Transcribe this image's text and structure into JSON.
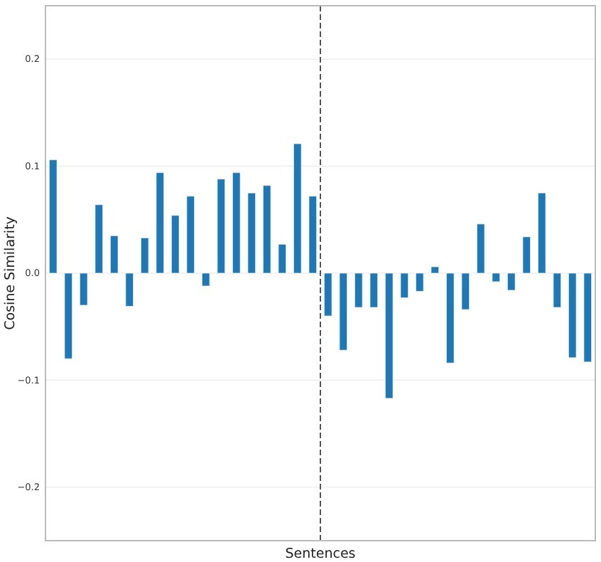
{
  "chart_data": {
    "type": "bar",
    "xlabel": "Sentences",
    "ylabel": "Cosine Similarity",
    "categories": [
      null,
      null,
      null,
      null,
      null,
      null,
      null,
      null,
      null,
      null,
      null,
      null,
      null,
      null,
      null,
      null,
      null,
      null,
      null,
      null,
      null,
      null,
      null,
      null,
      null,
      null,
      null,
      null,
      null,
      null,
      null,
      null,
      null,
      null,
      null,
      null
    ],
    "values": [
      0.106,
      -0.08,
      -0.03,
      0.064,
      0.035,
      -0.031,
      0.033,
      0.094,
      0.054,
      0.072,
      -0.012,
      0.088,
      0.094,
      0.075,
      0.082,
      0.027,
      0.121,
      0.072,
      -0.04,
      -0.072,
      -0.032,
      -0.032,
      -0.117,
      -0.023,
      -0.017,
      0.006,
      -0.084,
      -0.034,
      0.046,
      -0.008,
      -0.016,
      0.034,
      0.075,
      -0.032,
      -0.079,
      -0.083
    ],
    "color": "#1f77b4",
    "ylim": [
      -0.25,
      0.25
    ],
    "yticks": [
      {
        "value": -0.2,
        "label": "−0.2"
      },
      {
        "value": -0.1,
        "label": "−0.1"
      },
      {
        "value": 0,
        "label": "0.0"
      },
      0.1,
      0.2
    ],
    "grid": "y"
  }
}
